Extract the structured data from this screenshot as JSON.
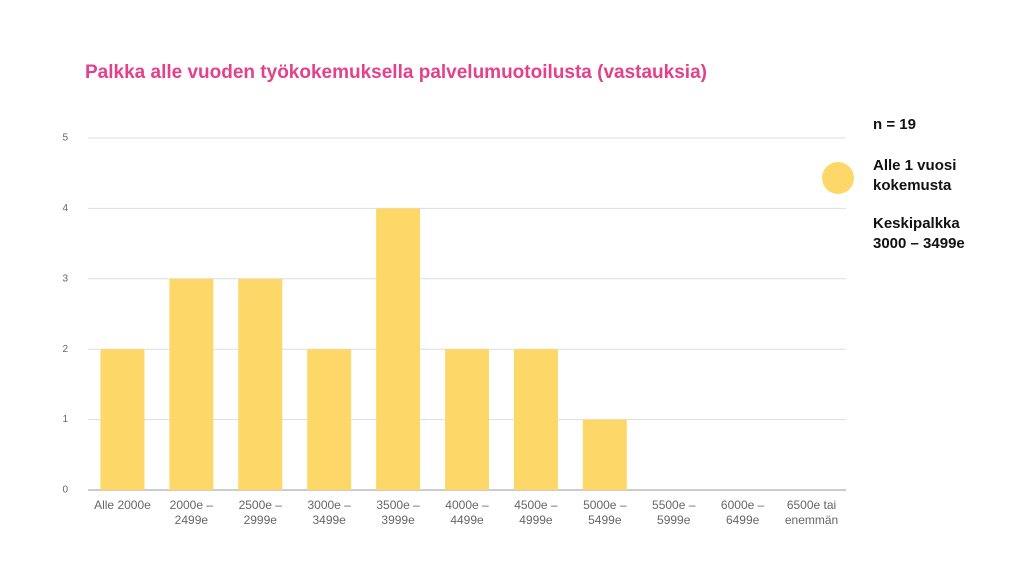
{
  "chart_data": {
    "type": "bar",
    "title": "Palkka alle vuoden työkokemuksella palvelumuotoilusta (vastauksia)",
    "categories": [
      "Alle 2000e",
      "2000e – 2499e",
      "2500e – 2999e",
      "3000e – 3499e",
      "3500e – 3999e",
      "4000e – 4499e",
      "4500e – 4999e",
      "5000e – 5499e",
      "5500e – 5999e",
      "6000e – 6499e",
      "6500e tai enemmän"
    ],
    "series": [
      {
        "name": "Alle 1 vuosi kokemusta",
        "color": "#fdd868",
        "values": [
          2,
          3,
          3,
          2,
          4,
          2,
          2,
          1,
          0,
          0,
          0
        ]
      }
    ],
    "annotations": [
      "n = 19",
      "Keskipalkka 3000 – 3499e"
    ],
    "ylim": [
      0,
      5
    ],
    "yticks": [
      0,
      1,
      2,
      3,
      4,
      5
    ],
    "grid": true
  }
}
